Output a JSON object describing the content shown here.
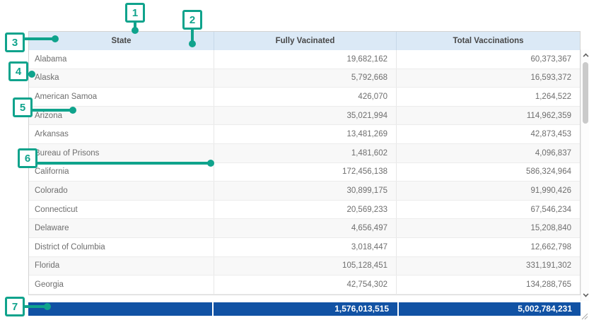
{
  "colors": {
    "accent": "#0fa38c",
    "header_bg": "#dbe9f6",
    "totals_bg": "#1152a4",
    "row_stripe": "#f8f8f8"
  },
  "annotations": {
    "markers": [
      {
        "label": "1"
      },
      {
        "label": "2"
      },
      {
        "label": "3"
      },
      {
        "label": "4"
      },
      {
        "label": "5"
      },
      {
        "label": "6"
      },
      {
        "label": "7"
      }
    ]
  },
  "table": {
    "columns": [
      "State",
      "Fully Vacinated",
      "Total Vaccinations"
    ],
    "rows": [
      [
        "Alabama",
        "19,682,162",
        "60,373,367"
      ],
      [
        "Alaska",
        "5,792,668",
        "16,593,372"
      ],
      [
        "American Samoa",
        "426,070",
        "1,264,522"
      ],
      [
        "Arizona",
        "35,021,994",
        "114,962,359"
      ],
      [
        "Arkansas",
        "13,481,269",
        "42,873,453"
      ],
      [
        "Bureau of Prisons",
        "1,481,602",
        "4,096,837"
      ],
      [
        "California",
        "172,456,138",
        "586,324,964"
      ],
      [
        "Colorado",
        "30,899,175",
        "91,990,426"
      ],
      [
        "Connecticut",
        "20,569,233",
        "67,546,234"
      ],
      [
        "Delaware",
        "4,656,497",
        "15,208,840"
      ],
      [
        "District of Columbia",
        "3,018,447",
        "12,662,798"
      ],
      [
        "Florida",
        "105,128,451",
        "331,191,302"
      ],
      [
        "Georgia",
        "42,754,302",
        "134,288,765"
      ]
    ],
    "totals": [
      "",
      "1,576,013,515",
      "5,002,784,231"
    ]
  },
  "scrollbar": {
    "up_icon": "chevron-up",
    "down_icon": "chevron-down",
    "corner_icon": "resize-grip"
  }
}
